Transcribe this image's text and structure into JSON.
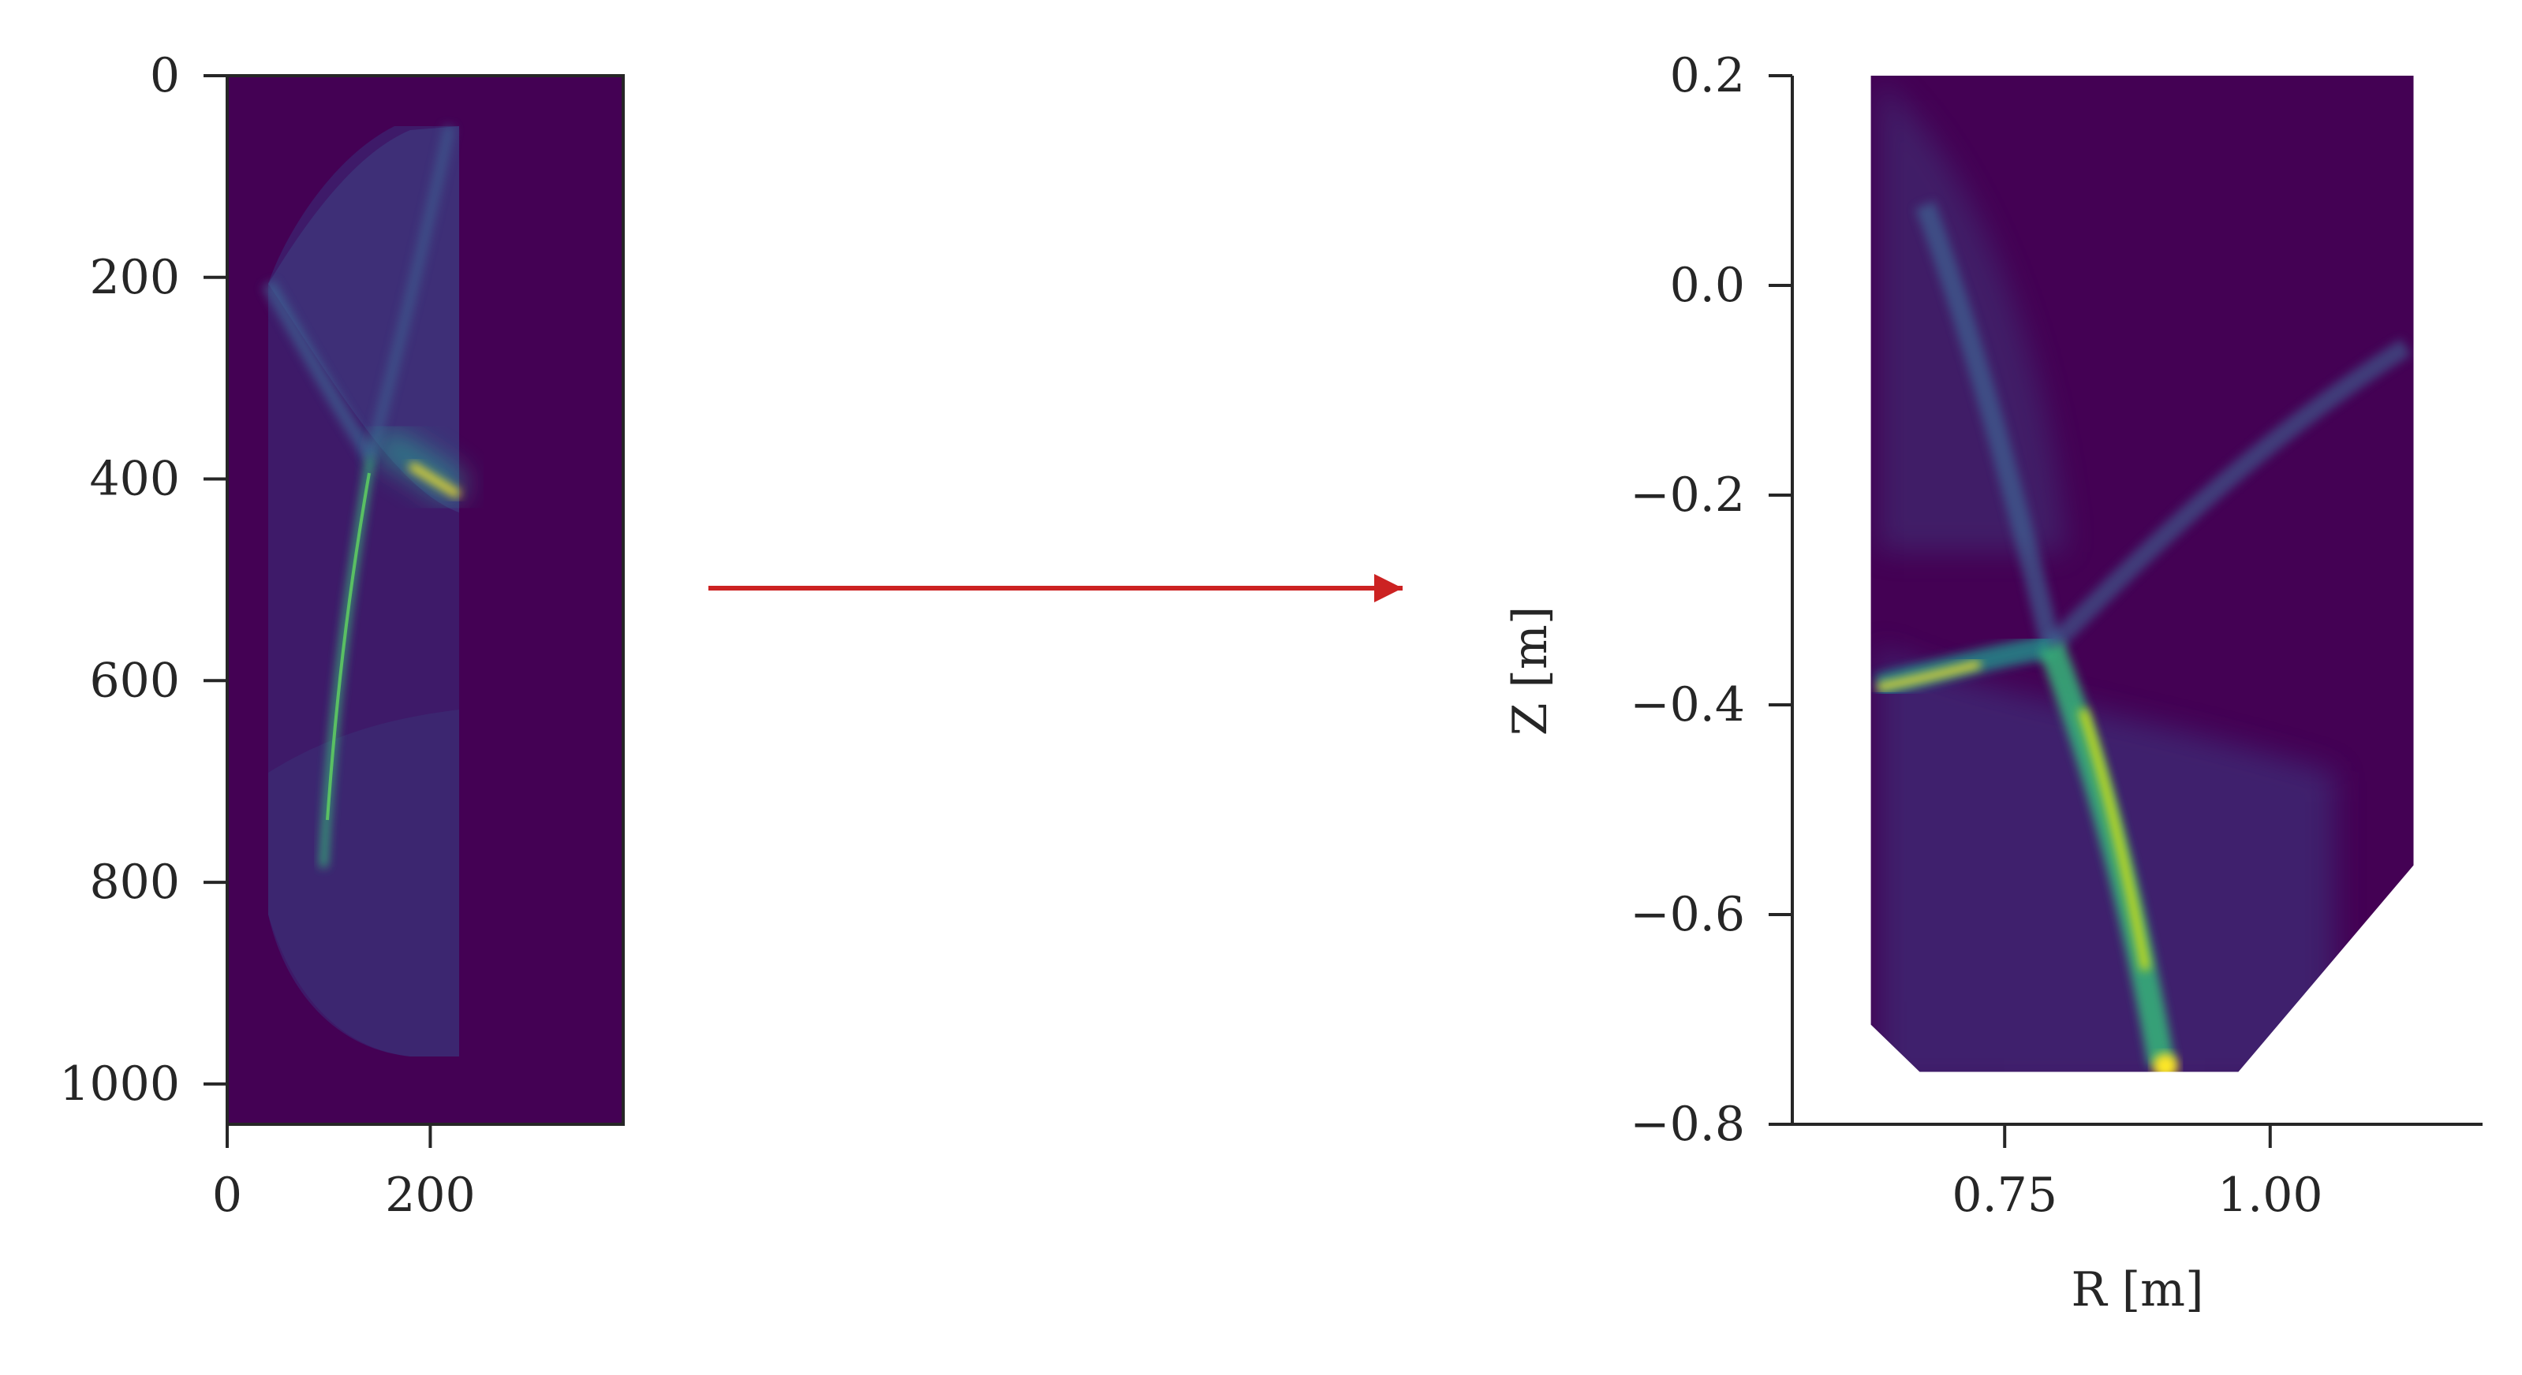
{
  "chart_data": [
    {
      "type": "heatmap",
      "colormap": "viridis",
      "xlabel": "",
      "ylabel": "",
      "xlim": [
        0,
        390
      ],
      "ylim": [
        1040,
        0
      ],
      "xticks": [
        0,
        200
      ],
      "xtick_labels": [
        "0",
        "200"
      ],
      "yticks": [
        0,
        200,
        400,
        600,
        800,
        1000
      ],
      "ytick_labels": [
        "0",
        "200",
        "400",
        "600",
        "800",
        "1000"
      ],
      "grid": false,
      "domain_outline": [
        [
          38,
          50
        ],
        [
          225,
          50
        ],
        [
          225,
          960
        ],
        [
          38,
          960
        ]
      ]
    },
    {
      "type": "heatmap",
      "colormap": "viridis",
      "xlabel": "R [m]",
      "ylabel": "Z [m]",
      "xlim": [
        0.55,
        1.2
      ],
      "ylim": [
        -0.8,
        0.2
      ],
      "xticks": [
        0.75,
        1.0
      ],
      "xtick_labels": [
        "0.75",
        "1.00"
      ],
      "yticks": [
        0.2,
        0.0,
        -0.2,
        -0.4,
        -0.6,
        -0.8
      ],
      "ytick_labels": [
        "0.2",
        "0.0",
        "−0.2",
        "−0.4",
        "−0.6",
        "−0.8"
      ],
      "grid": false,
      "domain_outline": [
        [
          0.624,
          0.2
        ],
        [
          1.135,
          0.2
        ],
        [
          1.135,
          -0.553
        ],
        [
          0.97,
          -0.75
        ],
        [
          0.67,
          -0.75
        ],
        [
          0.624,
          -0.705
        ]
      ]
    }
  ],
  "arrow": {
    "color": "#cc2222"
  },
  "colors": {
    "viridis_low": "#440154",
    "viridis_mid": "#21918c",
    "viridis_high": "#fde725",
    "background_fill": "#440154"
  }
}
